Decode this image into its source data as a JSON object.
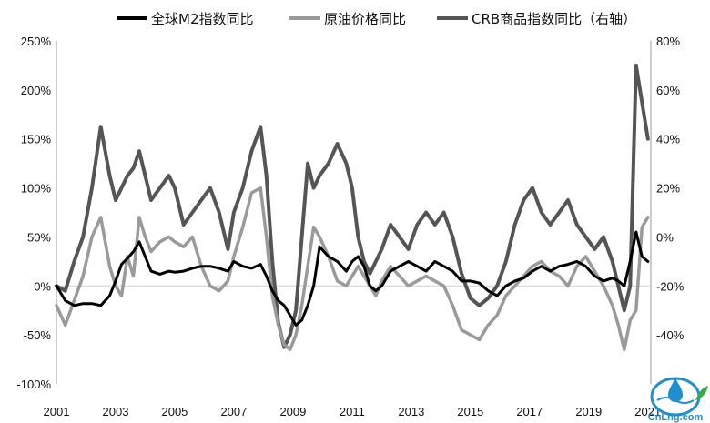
{
  "chart_data": {
    "type": "line",
    "title": "",
    "legend_position": "top",
    "legend": [
      {
        "name": "全球M2指数同比",
        "color": "#000000"
      },
      {
        "name": "原油价格同比",
        "color": "#9a9a9a"
      },
      {
        "name": "CRB商品指数同比（右轴）",
        "color": "#555555"
      }
    ],
    "x_tick_labels": [
      "2001",
      "2003",
      "2005",
      "2007",
      "2009",
      "2011",
      "2013",
      "2015",
      "2017",
      "2019",
      "2021"
    ],
    "x_tick_values": [
      2001,
      2003,
      2005,
      2007,
      2009,
      2011,
      2013,
      2015,
      2017,
      2019,
      2021
    ],
    "xlim": [
      2001,
      2021.1
    ],
    "y_left_tick_labels": [
      "250%",
      "200%",
      "150%",
      "100%",
      "50%",
      "0%",
      "-50%",
      "-100%"
    ],
    "y_left_tick_values": [
      250,
      200,
      150,
      100,
      50,
      0,
      -50,
      -100
    ],
    "ylim_left": [
      -100,
      250
    ],
    "y_right_tick_labels": [
      "80%",
      "60%",
      "40%",
      "20%",
      "0%",
      "-20%",
      "-40%",
      "-60%"
    ],
    "y_right_tick_values": [
      80,
      60,
      40,
      20,
      0,
      -20,
      -40,
      -60
    ],
    "ylim_right": [
      -60,
      80
    ],
    "grid": "horizontal-zero-line",
    "series": [
      {
        "name": "全球M2指数同比",
        "axis": "left",
        "color": "#000000",
        "x": [
          2001.0,
          2001.3,
          2001.6,
          2001.9,
          2002.2,
          2002.5,
          2002.8,
          2003.0,
          2003.2,
          2003.4,
          2003.6,
          2003.8,
          2004.0,
          2004.2,
          2004.5,
          2004.8,
          2005.0,
          2005.3,
          2005.6,
          2005.9,
          2006.2,
          2006.5,
          2006.8,
          2007.0,
          2007.3,
          2007.6,
          2007.9,
          2008.1,
          2008.3,
          2008.5,
          2008.7,
          2008.9,
          2009.1,
          2009.3,
          2009.5,
          2009.7,
          2009.9,
          2010.2,
          2010.5,
          2010.8,
          2011.0,
          2011.2,
          2011.4,
          2011.6,
          2011.8,
          2012.0,
          2012.3,
          2012.6,
          2012.9,
          2013.2,
          2013.5,
          2013.8,
          2014.1,
          2014.4,
          2014.7,
          2015.0,
          2015.3,
          2015.6,
          2015.9,
          2016.2,
          2016.5,
          2016.8,
          2017.1,
          2017.4,
          2017.7,
          2018.0,
          2018.3,
          2018.6,
          2018.9,
          2019.2,
          2019.5,
          2019.8,
          2020.0,
          2020.2,
          2020.4,
          2020.6,
          2020.8,
          2021.0
        ],
        "values": [
          0,
          -15,
          -20,
          -18,
          -18,
          -20,
          -10,
          5,
          22,
          28,
          35,
          45,
          30,
          15,
          12,
          15,
          14,
          15,
          18,
          20,
          20,
          18,
          15,
          25,
          20,
          18,
          22,
          10,
          -5,
          -15,
          -20,
          -30,
          -40,
          -35,
          -20,
          0,
          40,
          30,
          25,
          15,
          25,
          30,
          20,
          0,
          -5,
          0,
          15,
          20,
          25,
          20,
          15,
          25,
          20,
          15,
          5,
          5,
          3,
          -5,
          -10,
          0,
          5,
          8,
          15,
          20,
          15,
          20,
          22,
          25,
          20,
          10,
          5,
          8,
          5,
          0,
          25,
          55,
          30,
          25
        ]
      },
      {
        "name": "原油价格同比",
        "axis": "left",
        "color": "#9a9a9a",
        "x": [
          2001.0,
          2001.3,
          2001.6,
          2001.9,
          2002.2,
          2002.5,
          2002.8,
          2003.0,
          2003.2,
          2003.4,
          2003.6,
          2003.8,
          2004.0,
          2004.2,
          2004.5,
          2004.8,
          2005.0,
          2005.3,
          2005.6,
          2005.9,
          2006.2,
          2006.5,
          2006.8,
          2007.0,
          2007.3,
          2007.6,
          2007.9,
          2008.1,
          2008.3,
          2008.5,
          2008.7,
          2008.9,
          2009.1,
          2009.3,
          2009.5,
          2009.7,
          2009.9,
          2010.2,
          2010.5,
          2010.8,
          2011.0,
          2011.2,
          2011.4,
          2011.6,
          2011.8,
          2012.0,
          2012.3,
          2012.6,
          2012.9,
          2013.2,
          2013.5,
          2013.8,
          2014.1,
          2014.4,
          2014.7,
          2015.0,
          2015.3,
          2015.6,
          2015.9,
          2016.2,
          2016.5,
          2016.8,
          2017.1,
          2017.4,
          2017.7,
          2018.0,
          2018.3,
          2018.6,
          2018.9,
          2019.2,
          2019.5,
          2019.8,
          2020.0,
          2020.2,
          2020.4,
          2020.6,
          2020.8,
          2021.0
        ],
        "values": [
          -20,
          -40,
          -15,
          10,
          50,
          70,
          20,
          0,
          -10,
          30,
          10,
          70,
          50,
          35,
          45,
          50,
          45,
          40,
          50,
          20,
          0,
          -5,
          5,
          30,
          60,
          95,
          100,
          50,
          -10,
          -40,
          -60,
          -65,
          -50,
          -20,
          20,
          60,
          50,
          30,
          5,
          0,
          10,
          20,
          10,
          0,
          -10,
          5,
          20,
          10,
          0,
          5,
          10,
          5,
          0,
          -20,
          -45,
          -50,
          -55,
          -40,
          -30,
          -10,
          0,
          10,
          20,
          25,
          15,
          10,
          0,
          20,
          30,
          15,
          0,
          -20,
          -40,
          -65,
          -35,
          -25,
          60,
          70
        ]
      },
      {
        "name": "CRB商品指数同比（右轴）",
        "axis": "right",
        "color": "#555555",
        "x": [
          2001.0,
          2001.3,
          2001.6,
          2001.9,
          2002.2,
          2002.5,
          2002.8,
          2003.0,
          2003.2,
          2003.4,
          2003.6,
          2003.8,
          2004.0,
          2004.2,
          2004.5,
          2004.8,
          2005.0,
          2005.3,
          2005.6,
          2005.9,
          2006.2,
          2006.5,
          2006.8,
          2007.0,
          2007.3,
          2007.6,
          2007.9,
          2008.1,
          2008.3,
          2008.5,
          2008.7,
          2008.9,
          2009.1,
          2009.3,
          2009.5,
          2009.7,
          2009.9,
          2010.2,
          2010.5,
          2010.8,
          2011.0,
          2011.2,
          2011.4,
          2011.6,
          2011.8,
          2012.0,
          2012.3,
          2012.6,
          2012.9,
          2013.2,
          2013.5,
          2013.8,
          2014.1,
          2014.4,
          2014.7,
          2015.0,
          2015.3,
          2015.6,
          2015.9,
          2016.2,
          2016.5,
          2016.8,
          2017.1,
          2017.4,
          2017.7,
          2018.0,
          2018.3,
          2018.6,
          2018.9,
          2019.2,
          2019.5,
          2019.8,
          2020.0,
          2020.2,
          2020.4,
          2020.6,
          2020.8,
          2021.0
        ],
        "values": [
          -20,
          -22,
          -10,
          0,
          20,
          45,
          25,
          15,
          20,
          25,
          28,
          35,
          25,
          15,
          20,
          25,
          20,
          5,
          10,
          15,
          20,
          10,
          -5,
          10,
          20,
          35,
          45,
          25,
          -10,
          -35,
          -45,
          -40,
          -30,
          0,
          30,
          20,
          25,
          30,
          38,
          30,
          20,
          0,
          -10,
          -15,
          -10,
          -5,
          5,
          0,
          -5,
          5,
          10,
          5,
          10,
          0,
          -15,
          -25,
          -28,
          -25,
          -20,
          -10,
          5,
          15,
          20,
          10,
          5,
          10,
          15,
          5,
          0,
          -5,
          0,
          -10,
          -20,
          -30,
          -20,
          70,
          55,
          40
        ]
      }
    ]
  },
  "watermark": {
    "brand": "CnLng.com"
  }
}
